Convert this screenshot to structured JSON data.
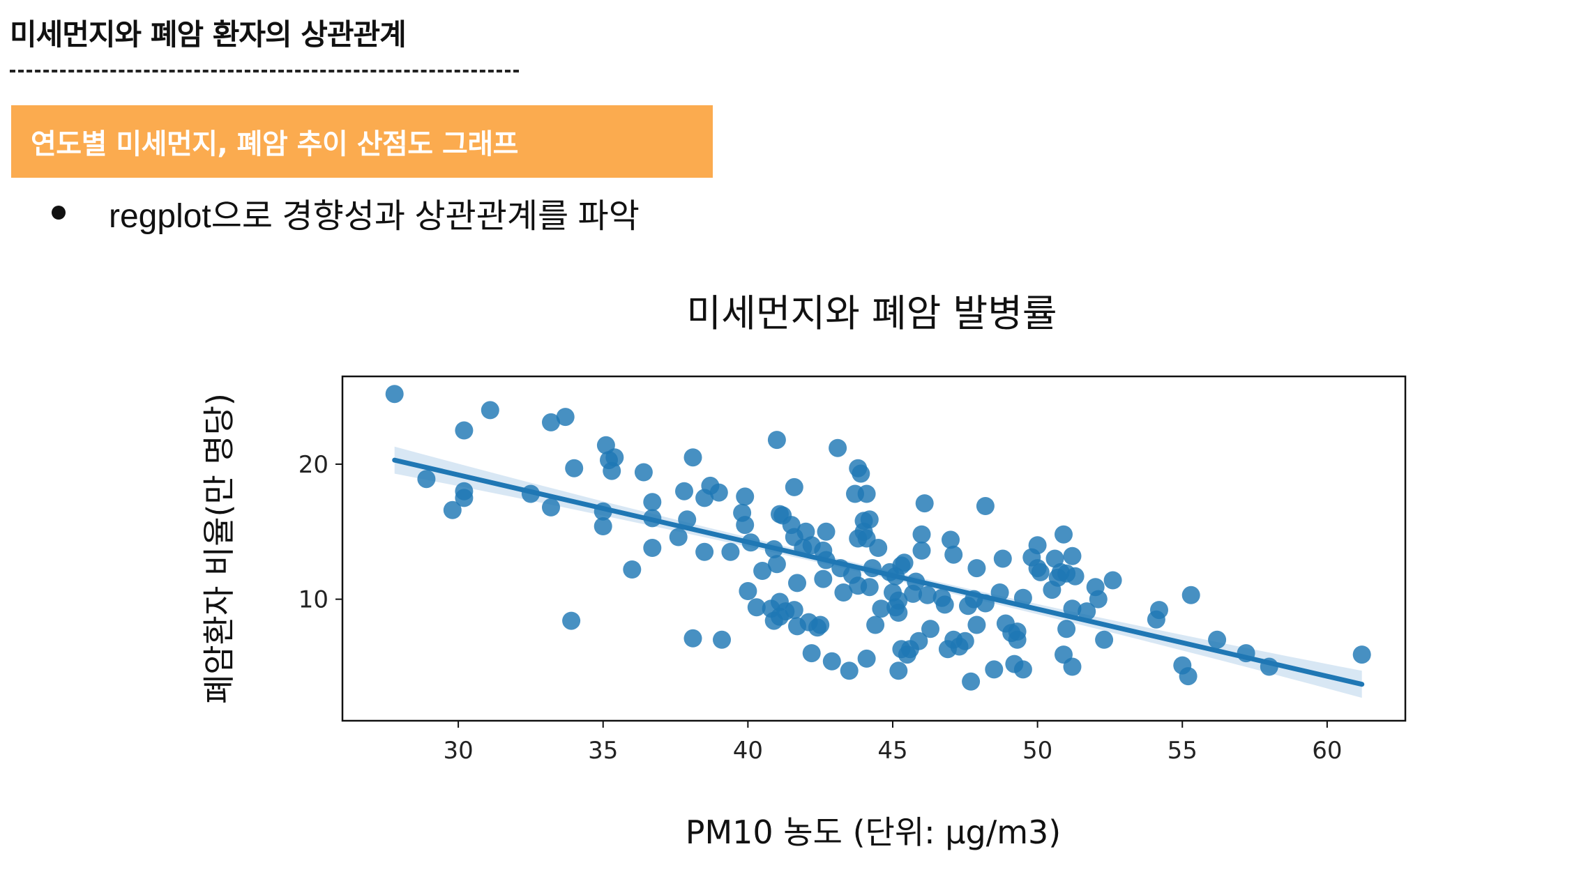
{
  "page": {
    "title": "미세먼지와 폐암 환자의 상관관계",
    "section_header": "연도별 미세먼지, 폐암 추이 산점도 그래프",
    "bullet_text": "regplot으로 경향성과 상관관계를 파악"
  },
  "colors": {
    "section_header_bg": "#fbab4f",
    "point": "#1f77b4",
    "regression_line": "#1f77b4",
    "confidence_band": "#a9c9e6"
  },
  "chart_data": {
    "type": "scatter",
    "title": "미세먼지와 폐암 발병률",
    "xlabel": "PM10 농도 (단위: μg/m3)",
    "ylabel": "폐암환자 비율(만 명당)",
    "xlim": [
      26,
      62.7
    ],
    "ylim": [
      1,
      26.5
    ],
    "xticks": [
      30,
      35,
      40,
      45,
      50,
      55,
      60
    ],
    "yticks": [
      10,
      20
    ],
    "grid": false,
    "regression": {
      "x0": 27.8,
      "y0": 20.3,
      "x1": 61.2,
      "y1": 3.7,
      "ci_halfwidth_edge": 1.0,
      "ci_halfwidth_center": 0.3
    },
    "points": [
      [
        27.8,
        25.2
      ],
      [
        28.9,
        18.9
      ],
      [
        29.8,
        16.6
      ],
      [
        30.2,
        22.5
      ],
      [
        30.2,
        18.0
      ],
      [
        30.2,
        17.5
      ],
      [
        31.1,
        24.0
      ],
      [
        32.5,
        17.8
      ],
      [
        33.2,
        16.8
      ],
      [
        33.2,
        23.1
      ],
      [
        33.7,
        23.5
      ],
      [
        33.9,
        8.4
      ],
      [
        34.0,
        19.7
      ],
      [
        35.0,
        16.5
      ],
      [
        35.0,
        15.4
      ],
      [
        35.1,
        21.4
      ],
      [
        35.2,
        20.3
      ],
      [
        35.3,
        19.5
      ],
      [
        35.4,
        20.5
      ],
      [
        36.0,
        12.2
      ],
      [
        36.4,
        19.4
      ],
      [
        36.7,
        16.0
      ],
      [
        36.7,
        17.2
      ],
      [
        36.7,
        13.8
      ],
      [
        37.6,
        14.6
      ],
      [
        37.8,
        18.0
      ],
      [
        37.9,
        15.9
      ],
      [
        38.1,
        20.5
      ],
      [
        38.1,
        7.1
      ],
      [
        38.5,
        17.5
      ],
      [
        38.5,
        13.5
      ],
      [
        38.7,
        18.4
      ],
      [
        39.0,
        17.9
      ],
      [
        39.1,
        7.0
      ],
      [
        39.4,
        13.5
      ],
      [
        39.8,
        16.4
      ],
      [
        39.9,
        17.6
      ],
      [
        39.9,
        15.5
      ],
      [
        40.1,
        14.2
      ],
      [
        40.0,
        10.6
      ],
      [
        40.3,
        9.4
      ],
      [
        40.5,
        12.1
      ],
      [
        40.9,
        13.7
      ],
      [
        41.0,
        12.6
      ],
      [
        40.8,
        9.3
      ],
      [
        40.9,
        8.4
      ],
      [
        41.1,
        8.7
      ],
      [
        41.0,
        21.8
      ],
      [
        41.1,
        16.3
      ],
      [
        41.2,
        16.2
      ],
      [
        41.1,
        9.8
      ],
      [
        41.3,
        9.1
      ],
      [
        41.5,
        15.5
      ],
      [
        41.6,
        18.3
      ],
      [
        41.6,
        14.6
      ],
      [
        41.6,
        9.2
      ],
      [
        41.7,
        11.2
      ],
      [
        41.7,
        8.0
      ],
      [
        41.9,
        13.8
      ],
      [
        42.0,
        15.0
      ],
      [
        42.2,
        14.0
      ],
      [
        42.1,
        8.3
      ],
      [
        42.2,
        6.0
      ],
      [
        42.4,
        7.9
      ],
      [
        42.5,
        8.1
      ],
      [
        42.6,
        13.6
      ],
      [
        42.7,
        12.9
      ],
      [
        42.6,
        11.5
      ],
      [
        42.7,
        15.0
      ],
      [
        42.9,
        5.4
      ],
      [
        43.1,
        21.2
      ],
      [
        43.3,
        10.5
      ],
      [
        43.2,
        12.3
      ],
      [
        43.5,
        4.7
      ],
      [
        43.6,
        11.8
      ],
      [
        43.7,
        17.8
      ],
      [
        43.8,
        14.5
      ],
      [
        43.8,
        19.7
      ],
      [
        43.9,
        19.3
      ],
      [
        43.8,
        11.0
      ],
      [
        44.1,
        17.8
      ],
      [
        44.0,
        15.8
      ],
      [
        44.0,
        15.0
      ],
      [
        44.1,
        14.5
      ],
      [
        44.1,
        5.6
      ],
      [
        44.2,
        10.9
      ],
      [
        44.2,
        15.9
      ],
      [
        44.3,
        12.3
      ],
      [
        44.4,
        8.1
      ],
      [
        44.6,
        9.3
      ],
      [
        44.5,
        13.8
      ],
      [
        44.9,
        12.0
      ],
      [
        45.0,
        10.5
      ],
      [
        45.1,
        11.7
      ],
      [
        45.1,
        9.4
      ],
      [
        45.2,
        9.0
      ],
      [
        45.3,
        6.3
      ],
      [
        45.2,
        4.7
      ],
      [
        45.3,
        12.5
      ],
      [
        45.2,
        9.9
      ],
      [
        45.4,
        12.7
      ],
      [
        45.5,
        5.9
      ],
      [
        45.6,
        6.3
      ],
      [
        45.7,
        10.4
      ],
      [
        45.8,
        11.3
      ],
      [
        45.9,
        6.9
      ],
      [
        46.0,
        13.6
      ],
      [
        46.0,
        14.8
      ],
      [
        46.1,
        17.1
      ],
      [
        46.2,
        10.3
      ],
      [
        46.3,
        7.8
      ],
      [
        46.7,
        10.1
      ],
      [
        46.8,
        9.6
      ],
      [
        46.9,
        6.3
      ],
      [
        47.0,
        14.4
      ],
      [
        47.1,
        7.0
      ],
      [
        47.1,
        13.3
      ],
      [
        47.3,
        6.5
      ],
      [
        47.5,
        6.9
      ],
      [
        47.6,
        9.5
      ],
      [
        47.8,
        10.0
      ],
      [
        47.7,
        3.9
      ],
      [
        47.9,
        8.1
      ],
      [
        47.9,
        12.3
      ],
      [
        48.2,
        16.9
      ],
      [
        48.2,
        9.7
      ],
      [
        48.5,
        4.8
      ],
      [
        48.7,
        10.5
      ],
      [
        48.8,
        13.0
      ],
      [
        48.9,
        8.2
      ],
      [
        49.1,
        7.5
      ],
      [
        49.2,
        5.2
      ],
      [
        49.3,
        7.0
      ],
      [
        49.3,
        7.6
      ],
      [
        49.5,
        4.8
      ],
      [
        49.5,
        10.1
      ],
      [
        49.8,
        13.1
      ],
      [
        50.1,
        12.0
      ],
      [
        50.0,
        12.3
      ],
      [
        50.0,
        14.0
      ],
      [
        50.5,
        10.7
      ],
      [
        50.6,
        13.0
      ],
      [
        50.7,
        11.6
      ],
      [
        50.8,
        12.0
      ],
      [
        50.9,
        14.8
      ],
      [
        50.9,
        5.9
      ],
      [
        51.0,
        7.8
      ],
      [
        51.0,
        11.9
      ],
      [
        51.2,
        9.3
      ],
      [
        51.2,
        5.0
      ],
      [
        51.2,
        13.2
      ],
      [
        51.3,
        11.7
      ],
      [
        51.7,
        9.1
      ],
      [
        52.0,
        10.9
      ],
      [
        52.1,
        10.0
      ],
      [
        52.3,
        7.0
      ],
      [
        52.6,
        11.4
      ],
      [
        54.1,
        8.5
      ],
      [
        54.2,
        9.2
      ],
      [
        55.0,
        5.1
      ],
      [
        55.2,
        4.3
      ],
      [
        55.3,
        10.3
      ],
      [
        56.2,
        7.0
      ],
      [
        57.2,
        6.0
      ],
      [
        58.0,
        5.0
      ],
      [
        61.2,
        5.9
      ]
    ]
  }
}
